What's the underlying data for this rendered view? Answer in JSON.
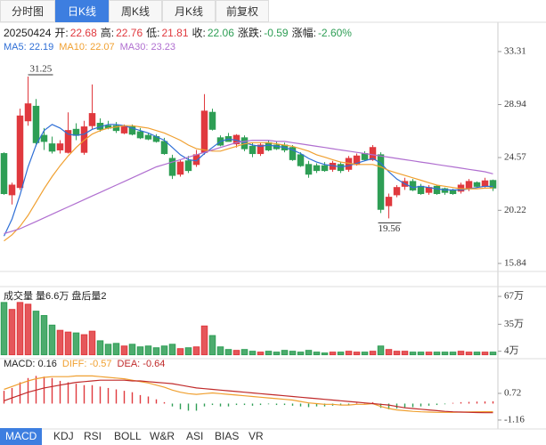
{
  "tabs": [
    "分时图",
    "日K线",
    "周K线",
    "月K线",
    "前复权"
  ],
  "active_tab": 1,
  "info": {
    "date": "20250424",
    "fields": [
      {
        "label": "开:",
        "value": "22.68",
        "color": "#e0393e"
      },
      {
        "label": "高:",
        "value": "22.76",
        "color": "#e0393e"
      },
      {
        "label": "低:",
        "value": "21.81",
        "color": "#e0393e"
      },
      {
        "label": "收:",
        "value": "22.06",
        "color": "#2e9e55"
      },
      {
        "label": "涨跌:",
        "value": "-0.59",
        "color": "#2e9e55"
      },
      {
        "label": "涨幅:",
        "value": "-2.60%",
        "color": "#2e9e55"
      }
    ]
  },
  "chart_data": [
    {
      "type": "candlestick",
      "up_color": "#e0393e",
      "down_color": "#2e9e55",
      "ylim": [
        15.18,
        34.26
      ],
      "yticks": [
        33.31,
        28.94,
        24.57,
        20.22,
        15.84
      ],
      "open": [
        24.9,
        21.5,
        22.1,
        27.6,
        28.8,
        26.4,
        25.7,
        25.2,
        25.0,
        26.9,
        25.0,
        27.2,
        27.4,
        27.2,
        27.2,
        26.6,
        27.1,
        26.7,
        26.4,
        26.3,
        25.9,
        24.5,
        23.2,
        24.3,
        24.0,
        25.0,
        28.3,
        26.2,
        26.3,
        25.7,
        26.2,
        25.5,
        24.9,
        25.8,
        25.6,
        25.6,
        25.4,
        24.8,
        24.0,
        23.9,
        23.9,
        23.6,
        24.0,
        23.6,
        24.0,
        24.9,
        24.4,
        24.8,
        20.6,
        21.5,
        22.2,
        22.6,
        22.2,
        21.7,
        22.2,
        22.0,
        21.9,
        21.8,
        22.0,
        22.5,
        22.2,
        22.68
      ],
      "high": [
        25.0,
        22.5,
        28.6,
        31.25,
        29.4,
        27.0,
        26.3,
        26.0,
        28.3,
        27.4,
        27.6,
        30.6,
        27.8,
        27.6,
        27.5,
        27.3,
        27.3,
        27.0,
        26.6,
        26.5,
        26.2,
        24.8,
        24.4,
        24.7,
        25.2,
        29.8,
        28.6,
        26.4,
        26.6,
        26.5,
        26.4,
        25.8,
        25.8,
        26.0,
        25.9,
        25.8,
        25.6,
        25.0,
        24.3,
        24.1,
        24.2,
        24.3,
        24.2,
        24.7,
        24.9,
        25.1,
        25.6,
        25.0,
        21.6,
        22.3,
        22.9,
        22.8,
        22.4,
        22.3,
        22.3,
        22.1,
        22.0,
        22.5,
        22.8,
        22.6,
        22.9,
        22.76
      ],
      "low": [
        21.5,
        20.7,
        21.9,
        27.2,
        25.5,
        25.2,
        24.9,
        24.9,
        24.9,
        26.0,
        24.8,
        26.9,
        26.7,
        26.9,
        26.6,
        26.5,
        26.4,
        26.1,
        26.0,
        25.8,
        24.8,
        22.8,
        23.0,
        23.3,
        23.8,
        24.8,
        26.8,
        25.5,
        25.9,
        25.4,
        25.1,
        24.6,
        24.7,
        25.1,
        25.2,
        25.0,
        24.3,
        23.8,
        22.9,
        23.3,
        23.4,
        23.4,
        23.3,
        23.4,
        23.9,
        24.3,
        24.3,
        20.0,
        19.56,
        21.3,
        21.9,
        21.8,
        21.5,
        21.5,
        21.5,
        21.5,
        21.5,
        21.6,
        21.8,
        22.1,
        22.1,
        21.81
      ],
      "close": [
        21.6,
        22.3,
        28.0,
        29.0,
        25.8,
        25.9,
        25.1,
        25.7,
        26.8,
        26.4,
        27.1,
        28.2,
        26.9,
        27.0,
        26.8,
        27.1,
        26.5,
        26.2,
        26.1,
        25.9,
        24.9,
        23.1,
        24.2,
        23.5,
        24.8,
        28.4,
        26.9,
        25.6,
        25.9,
        26.4,
        25.3,
        24.9,
        25.6,
        25.2,
        25.3,
        25.2,
        24.4,
        23.9,
        23.2,
        23.5,
        23.5,
        24.1,
        23.5,
        24.5,
        24.7,
        24.4,
        25.4,
        20.3,
        21.3,
        22.1,
        22.6,
        21.9,
        21.6,
        22.1,
        21.6,
        21.7,
        21.6,
        22.3,
        22.6,
        22.2,
        22.65,
        22.06
      ],
      "series": [
        {
          "name": "MA5: 22.19",
          "color": "#2f6fd6",
          "values": [
            18.1,
            19.5,
            21.5,
            23.8,
            25.6,
            26.8,
            27.3,
            27.0,
            26.5,
            26.4,
            26.5,
            26.9,
            27.1,
            27.3,
            27.3,
            27.2,
            27.0,
            26.8,
            26.6,
            26.3,
            26.0,
            25.4,
            24.8,
            24.4,
            24.3,
            24.9,
            25.4,
            25.9,
            26.1,
            26.0,
            25.8,
            25.6,
            25.5,
            25.6,
            25.5,
            25.4,
            25.2,
            24.9,
            24.5,
            24.2,
            24.0,
            23.9,
            23.8,
            23.9,
            24.1,
            24.3,
            24.5,
            24.1,
            23.4,
            22.8,
            22.4,
            22.1,
            22.2,
            22.1,
            22.0,
            21.9,
            21.9,
            21.9,
            22.0,
            22.1,
            22.2,
            22.19
          ]
        },
        {
          "name": "MA10: 22.07",
          "color": "#f0a030",
          "values": [
            17.7,
            18.2,
            18.9,
            19.8,
            20.9,
            22.0,
            23.0,
            23.9,
            24.7,
            25.4,
            26.0,
            26.5,
            26.8,
            27.0,
            27.1,
            27.2,
            27.2,
            27.1,
            27.0,
            26.8,
            26.6,
            26.3,
            26.0,
            25.6,
            25.3,
            25.2,
            25.1,
            25.1,
            25.3,
            25.5,
            25.7,
            25.8,
            25.8,
            25.8,
            25.7,
            25.6,
            25.5,
            25.3,
            25.1,
            24.8,
            24.6,
            24.4,
            24.2,
            24.1,
            24.0,
            24.0,
            24.0,
            23.8,
            23.5,
            23.3,
            23.1,
            22.9,
            22.7,
            22.5,
            22.3,
            22.2,
            22.1,
            22.0,
            22.0,
            22.0,
            22.05,
            22.07
          ]
        },
        {
          "name": "MA30: 23.23",
          "color": "#b06fd0",
          "values": [
            18.3,
            18.5,
            18.7,
            19.0,
            19.3,
            19.6,
            19.9,
            20.2,
            20.5,
            20.8,
            21.1,
            21.4,
            21.7,
            22.0,
            22.3,
            22.6,
            22.9,
            23.2,
            23.5,
            23.8,
            24.0,
            24.2,
            24.4,
            24.6,
            24.8,
            25.0,
            25.2,
            25.4,
            25.6,
            25.8,
            25.9,
            26.0,
            26.0,
            26.0,
            25.9,
            25.9,
            25.8,
            25.7,
            25.6,
            25.5,
            25.4,
            25.3,
            25.2,
            25.1,
            25.0,
            24.9,
            24.8,
            24.7,
            24.6,
            24.5,
            24.4,
            24.3,
            24.2,
            24.1,
            24.0,
            23.9,
            23.8,
            23.7,
            23.6,
            23.5,
            23.4,
            23.23
          ]
        }
      ]
    },
    {
      "type": "bar",
      "title": "成交量 量6.6万 盘后量2",
      "ylim": [
        -3.5,
        75.2
      ],
      "yticks": [
        {
          "value": 67,
          "label": "67万"
        },
        {
          "value": 35,
          "label": "35万"
        },
        {
          "value": 4,
          "label": "4万"
        }
      ],
      "values": [
        60,
        52,
        60,
        58,
        50,
        45,
        34,
        28,
        26,
        25,
        23,
        27,
        16,
        12,
        13,
        10,
        12,
        9,
        10,
        8,
        10,
        12,
        7,
        8,
        9,
        33,
        22,
        9,
        6,
        5,
        6,
        4,
        3,
        4,
        3,
        5,
        4,
        3,
        5,
        3,
        2,
        3,
        3,
        4,
        3,
        3,
        4,
        10,
        6,
        4,
        4,
        3,
        3,
        3,
        3,
        3,
        3,
        4,
        3,
        3,
        3,
        3
      ]
    },
    {
      "type": "macd",
      "ylim": [
        -1.79,
        3.04
      ],
      "yticks": [
        0.72,
        -1.16
      ],
      "histogram": {
        "name": "MACD: 0.16",
        "up_color": "#e0393e",
        "down_color": "#2e9e55",
        "values": [
          0.9,
          1.1,
          1.5,
          1.8,
          1.95,
          1.9,
          1.8,
          1.6,
          1.5,
          1.4,
          1.3,
          1.3,
          1.2,
          1.1,
          1.0,
          0.9,
          0.8,
          0.6,
          0.5,
          0.3,
          0.1,
          -0.2,
          -0.4,
          -0.5,
          -0.5,
          -0.2,
          -0.1,
          -0.2,
          -0.2,
          -0.1,
          -0.1,
          -0.15,
          -0.1,
          -0.05,
          -0.1,
          -0.1,
          -0.15,
          -0.2,
          -0.25,
          -0.2,
          -0.2,
          -0.15,
          -0.1,
          -0.1,
          0.05,
          0.05,
          0.1,
          -0.3,
          -0.4,
          -0.35,
          -0.3,
          -0.25,
          -0.2,
          -0.15,
          -0.1,
          -0.05,
          0.05,
          0.1,
          0.12,
          0.14,
          0.15,
          0.16
        ]
      },
      "series": [
        {
          "name": "DIFF: -0.57",
          "color": "#f0a030",
          "values": [
            1.0,
            1.2,
            1.4,
            1.6,
            1.75,
            1.85,
            1.9,
            1.9,
            1.9,
            1.95,
            1.95,
            1.95,
            1.9,
            1.85,
            1.8,
            1.75,
            1.65,
            1.55,
            1.45,
            1.3,
            1.15,
            0.95,
            0.8,
            0.7,
            0.65,
            0.7,
            0.75,
            0.7,
            0.65,
            0.6,
            0.55,
            0.5,
            0.45,
            0.4,
            0.35,
            0.3,
            0.25,
            0.15,
            0.05,
            0.0,
            -0.05,
            -0.05,
            -0.1,
            -0.1,
            -0.05,
            -0.05,
            0.0,
            -0.2,
            -0.35,
            -0.45,
            -0.5,
            -0.55,
            -0.58,
            -0.6,
            -0.62,
            -0.62,
            -0.62,
            -0.6,
            -0.59,
            -0.58,
            -0.57,
            -0.57
          ]
        },
        {
          "name": "DEA: -0.64",
          "color": "#c02a2a",
          "values": [
            0.2,
            0.4,
            0.6,
            0.8,
            0.95,
            1.1,
            1.2,
            1.3,
            1.4,
            1.5,
            1.55,
            1.6,
            1.65,
            1.65,
            1.65,
            1.65,
            1.6,
            1.6,
            1.55,
            1.5,
            1.45,
            1.4,
            1.3,
            1.2,
            1.1,
            1.05,
            1.0,
            0.95,
            0.9,
            0.85,
            0.8,
            0.75,
            0.7,
            0.65,
            0.6,
            0.55,
            0.5,
            0.45,
            0.4,
            0.35,
            0.3,
            0.25,
            0.2,
            0.15,
            0.1,
            0.05,
            0.0,
            -0.05,
            -0.1,
            -0.2,
            -0.3,
            -0.35,
            -0.4,
            -0.45,
            -0.5,
            -0.55,
            -0.58,
            -0.6,
            -0.62,
            -0.63,
            -0.64,
            -0.64
          ]
        }
      ]
    }
  ],
  "indicator_tabs": [
    "MACD",
    "KDJ",
    "RSI",
    "BOLL",
    "W&R",
    "ASI",
    "BIAS",
    "VR"
  ],
  "active_indicator": 0
}
